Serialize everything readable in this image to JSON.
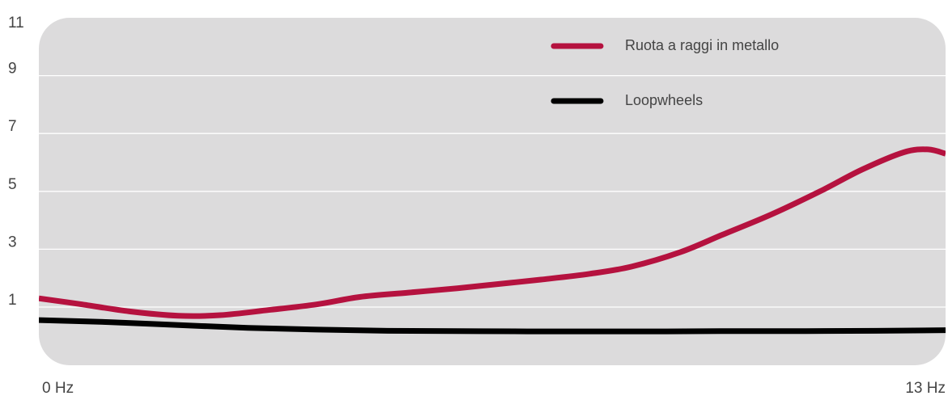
{
  "chart_data": {
    "type": "line",
    "title": "",
    "xlabel": "",
    "ylabel": "",
    "xlim": [
      0,
      13
    ],
    "ylim": [
      -1,
      11
    ],
    "x_tick_labels": [
      "0 Hz",
      "13 Hz"
    ],
    "y_ticks": [
      1,
      3,
      5,
      7,
      9,
      11
    ],
    "y_tick_labels": [
      "1",
      "3",
      "5",
      "7",
      "9",
      "11"
    ],
    "grid": true,
    "legend_position": "top-right",
    "background": "#dcdbdc",
    "series": [
      {
        "name": "Ruota a raggi in metallo",
        "color": "#b5123f",
        "x": [
          0,
          0.6,
          1.3,
          2.0,
          2.6,
          3.3,
          4.0,
          4.6,
          5.3,
          6.0,
          6.6,
          7.2,
          7.9,
          8.5,
          9.2,
          9.8,
          10.5,
          11.2,
          11.8,
          12.4,
          12.75,
          13.0
        ],
        "y": [
          1.3,
          1.1,
          0.85,
          0.7,
          0.72,
          0.9,
          1.1,
          1.35,
          1.5,
          1.65,
          1.8,
          1.95,
          2.15,
          2.4,
          2.9,
          3.5,
          4.2,
          5.0,
          5.75,
          6.35,
          6.45,
          6.3
        ]
      },
      {
        "name": "Loopwheels",
        "color": "#000000",
        "x": [
          0,
          1.0,
          2.0,
          3.0,
          4.0,
          5.0,
          6.0,
          7.0,
          8.0,
          9.0,
          10.0,
          11.0,
          12.0,
          13.0
        ],
        "y": [
          0.55,
          0.48,
          0.38,
          0.28,
          0.22,
          0.18,
          0.17,
          0.16,
          0.16,
          0.16,
          0.17,
          0.17,
          0.18,
          0.2
        ]
      }
    ]
  }
}
